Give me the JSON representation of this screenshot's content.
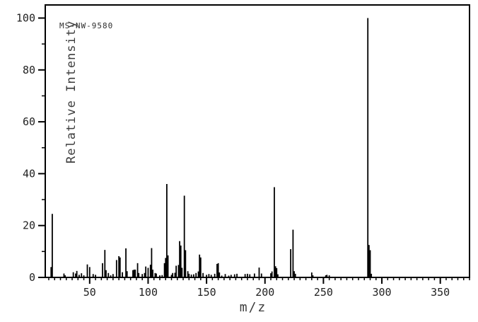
{
  "annotation_label": "MS-NW-9580",
  "colors": {
    "background": "#ffffff",
    "axis": "#000000",
    "peaks": "#000000",
    "tick_text": "#222222",
    "label_text": "#3c3c3c"
  },
  "chart_data": {
    "type": "bar",
    "title": "MS-NW-9580",
    "xlabel": "m/z",
    "ylabel": "Relative Intensity",
    "xlim": [
      12,
      375
    ],
    "ylim": [
      0,
      105
    ],
    "x_major_ticks": [
      50,
      100,
      150,
      200,
      250,
      300,
      350
    ],
    "x_minor_tick_step": 5,
    "y_major_ticks": [
      0,
      20,
      40,
      60,
      80,
      100
    ],
    "y_minor_tick_step": 10,
    "grid": false,
    "legend": false,
    "series_name": "relative-intensity",
    "base_peak_mz": 288,
    "peaks": [
      [
        17,
        4
      ],
      [
        18,
        24.5
      ],
      [
        28,
        1.5
      ],
      [
        29,
        0.8
      ],
      [
        36,
        2
      ],
      [
        38,
        1.5
      ],
      [
        39,
        2.5
      ],
      [
        41,
        1
      ],
      [
        43,
        1.6
      ],
      [
        45,
        0.8
      ],
      [
        48,
        5
      ],
      [
        50,
        4
      ],
      [
        53,
        1.3
      ],
      [
        55,
        1
      ],
      [
        61,
        5.5
      ],
      [
        63,
        10.6
      ],
      [
        64,
        2.8
      ],
      [
        66,
        1.7
      ],
      [
        68,
        0.8
      ],
      [
        70,
        1.3
      ],
      [
        73,
        6.7
      ],
      [
        75,
        8.2
      ],
      [
        76,
        7.7
      ],
      [
        78,
        2
      ],
      [
        81,
        11.2
      ],
      [
        82,
        2.4
      ],
      [
        87,
        2.8
      ],
      [
        88,
        3
      ],
      [
        89,
        3
      ],
      [
        91,
        5.5
      ],
      [
        92,
        1.7
      ],
      [
        95,
        1.3
      ],
      [
        97,
        1.7
      ],
      [
        98,
        4.2
      ],
      [
        100,
        3.7
      ],
      [
        102,
        4.9
      ],
      [
        103,
        11.3
      ],
      [
        104,
        3
      ],
      [
        106,
        1.7
      ],
      [
        107,
        1.5
      ],
      [
        110,
        0.8
      ],
      [
        112,
        0.9
      ],
      [
        114,
        5.5
      ],
      [
        115,
        7.5
      ],
      [
        116,
        36
      ],
      [
        117,
        8.5
      ],
      [
        120,
        1
      ],
      [
        121,
        1.7
      ],
      [
        123,
        1.8
      ],
      [
        124,
        4.5
      ],
      [
        126,
        4.8
      ],
      [
        127,
        14
      ],
      [
        128,
        12.3
      ],
      [
        129,
        3.7
      ],
      [
        131,
        31.5
      ],
      [
        132,
        10.5
      ],
      [
        134,
        2.4
      ],
      [
        135,
        1.4
      ],
      [
        137,
        1.1
      ],
      [
        139,
        1.2
      ],
      [
        141,
        1.7
      ],
      [
        143,
        2.3
      ],
      [
        144,
        8.8
      ],
      [
        145,
        7.7
      ],
      [
        147,
        1.7
      ],
      [
        150,
        1
      ],
      [
        152,
        1.3
      ],
      [
        154,
        1
      ],
      [
        157,
        1.4
      ],
      [
        159,
        5.2
      ],
      [
        160,
        5.5
      ],
      [
        161,
        1.9
      ],
      [
        163,
        0.7
      ],
      [
        166,
        1.3
      ],
      [
        169,
        0.7
      ],
      [
        171,
        1
      ],
      [
        174,
        1.2
      ],
      [
        176,
        1.4
      ],
      [
        183,
        1.3
      ],
      [
        185,
        1.4
      ],
      [
        187,
        1.2
      ],
      [
        191,
        1.5
      ],
      [
        195,
        3.8
      ],
      [
        197,
        1.5
      ],
      [
        205,
        1.6
      ],
      [
        206,
        2.3
      ],
      [
        208,
        34.8
      ],
      [
        209,
        4.3
      ],
      [
        210,
        3.6
      ],
      [
        211,
        1.2
      ],
      [
        222,
        10.9
      ],
      [
        224,
        18.4
      ],
      [
        225,
        2.4
      ],
      [
        226,
        1.4
      ],
      [
        240,
        1.9
      ],
      [
        241,
        0.8
      ],
      [
        252,
        0.8
      ],
      [
        253,
        1
      ],
      [
        255,
        0.8
      ],
      [
        288,
        100
      ],
      [
        289,
        12.5
      ],
      [
        290,
        10.5
      ],
      [
        291,
        1.4
      ]
    ]
  },
  "layout_hints": {
    "legend_position": "none",
    "tick_direction": "out"
  }
}
